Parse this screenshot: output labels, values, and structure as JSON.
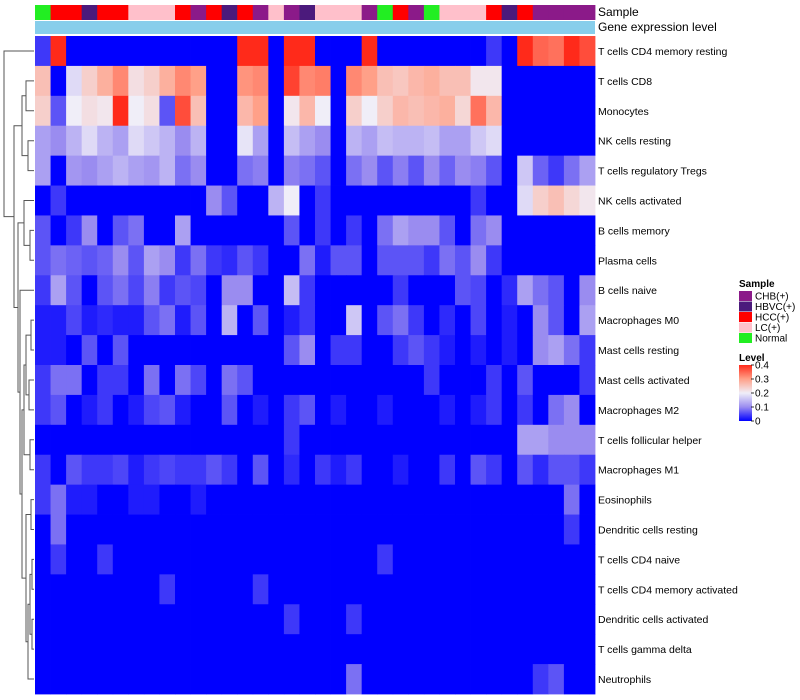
{
  "chart_data": {
    "type": "heatmap",
    "annotation_labels": {
      "sample": "Sample",
      "level": "Gene expression level"
    },
    "row_labels": [
      "T cells CD4 memory resting",
      "T cells CD8",
      "Monocytes",
      "NK cells resting",
      "T cells regulatory  Tregs",
      "NK cells activated",
      "B cells memory",
      "Plasma cells",
      "B cells naive",
      "Macrophages M0",
      "Mast cells resting",
      "Mast cells activated",
      "Macrophages M2",
      "T cells follicular helper",
      "Macrophages M1",
      "Eosinophils",
      "Dendritic cells resting",
      "T cells CD4 naive",
      "T cells CD4 memory activated",
      "Dendritic cells activated",
      "T cells gamma delta",
      "Neutrophils"
    ],
    "sample_groups": [
      "Normal",
      "HCC(+)",
      "HCC(+)",
      "HBVC(+)",
      "HCC(+)",
      "HCC(+)",
      "LC(+)",
      "LC(+)",
      "LC(+)",
      "HCC(+)",
      "CHB(+)",
      "HCC(+)",
      "HBVC(+)",
      "HCC(+)",
      "CHB(+)",
      "LC(+)",
      "CHB(+)",
      "HBVC(+)",
      "LC(+)",
      "LC(+)",
      "LC(+)",
      "CHB(+)",
      "Normal",
      "HCC(+)",
      "CHB(+)",
      "Normal",
      "LC(+)",
      "LC(+)",
      "LC(+)",
      "HCC(+)",
      "HBVC(+)",
      "HCC(+)",
      "CHB(+)",
      "CHB(+)",
      "CHB(+)",
      "CHB(+)"
    ],
    "legend": {
      "sample_title": "Sample",
      "sample_entries": [
        {
          "label": "CHB(+)",
          "color": "#8B1A89"
        },
        {
          "label": "HBVC(+)",
          "color": "#4B1A7C"
        },
        {
          "label": "HCC(+)",
          "color": "#FF0000"
        },
        {
          "label": "LC(+)",
          "color": "#FFC0CB"
        },
        {
          "label": "Normal",
          "color": "#22EE22"
        }
      ],
      "level_title": "Level",
      "level_ticks": [
        "0.4",
        "0.3",
        "0.2",
        "0.1",
        "0"
      ],
      "level_range": [
        0,
        0.4
      ]
    },
    "values": [
      [
        0.04,
        0.4,
        0.0,
        0.0,
        0.0,
        0.0,
        0.0,
        0.0,
        0.0,
        0.0,
        0.0,
        0.0,
        0.0,
        0.4,
        0.4,
        0.0,
        0.4,
        0.4,
        0.0,
        0.0,
        0.0,
        0.4,
        0.0,
        0.0,
        0.0,
        0.0,
        0.0,
        0.0,
        0.0,
        0.04,
        0.0,
        0.4,
        0.35,
        0.34,
        0.4,
        0.37
      ],
      [
        0.26,
        0.0,
        0.18,
        0.24,
        0.28,
        0.32,
        0.22,
        0.24,
        0.28,
        0.32,
        0.3,
        0.0,
        0.0,
        0.31,
        0.32,
        0.0,
        0.38,
        0.32,
        0.33,
        0.0,
        0.32,
        0.3,
        0.26,
        0.25,
        0.27,
        0.28,
        0.26,
        0.26,
        0.21,
        0.21,
        0.0,
        0.0,
        0.0,
        0.0,
        0.0,
        0.0
      ],
      [
        0.24,
        0.06,
        0.2,
        0.22,
        0.21,
        0.4,
        0.2,
        0.22,
        0.06,
        0.37,
        0.26,
        0.0,
        0.0,
        0.27,
        0.3,
        0.0,
        0.21,
        0.27,
        0.2,
        0.0,
        0.24,
        0.2,
        0.24,
        0.27,
        0.26,
        0.27,
        0.28,
        0.23,
        0.34,
        0.27,
        0.0,
        0.0,
        0.0,
        0.0,
        0.0,
        0.0
      ],
      [
        0.12,
        0.1,
        0.14,
        0.18,
        0.14,
        0.12,
        0.18,
        0.16,
        0.14,
        0.1,
        0.14,
        0.0,
        0.0,
        0.19,
        0.12,
        0.0,
        0.15,
        0.12,
        0.1,
        0.0,
        0.14,
        0.12,
        0.15,
        0.14,
        0.14,
        0.15,
        0.12,
        0.12,
        0.16,
        0.18,
        0.0,
        0.0,
        0.0,
        0.0,
        0.0,
        0.0
      ],
      [
        0.12,
        0.0,
        0.11,
        0.1,
        0.12,
        0.14,
        0.12,
        0.11,
        0.14,
        0.08,
        0.1,
        0.0,
        0.0,
        0.08,
        0.09,
        0.0,
        0.09,
        0.08,
        0.06,
        0.0,
        0.08,
        0.1,
        0.06,
        0.09,
        0.06,
        0.1,
        0.07,
        0.1,
        0.09,
        0.06,
        0.0,
        0.16,
        0.07,
        0.04,
        0.08,
        0.12
      ],
      [
        0.0,
        0.04,
        0.0,
        0.0,
        0.0,
        0.0,
        0.0,
        0.0,
        0.0,
        0.0,
        0.0,
        0.1,
        0.06,
        0.0,
        0.0,
        0.14,
        0.2,
        0.0,
        0.04,
        0.0,
        0.0,
        0.0,
        0.0,
        0.0,
        0.0,
        0.0,
        0.0,
        0.0,
        0.04,
        0.0,
        0.0,
        0.18,
        0.24,
        0.26,
        0.23,
        0.21
      ],
      [
        0.06,
        0.0,
        0.04,
        0.1,
        0.0,
        0.06,
        0.08,
        0.0,
        0.0,
        0.12,
        0.0,
        0.0,
        0.0,
        0.0,
        0.0,
        0.0,
        0.06,
        0.0,
        0.04,
        0.0,
        0.04,
        0.0,
        0.08,
        0.12,
        0.1,
        0.1,
        0.06,
        0.0,
        0.08,
        0.1,
        0.0,
        0.0,
        0.0,
        0.0,
        0.0,
        0.0
      ],
      [
        0.06,
        0.08,
        0.07,
        0.06,
        0.07,
        0.1,
        0.06,
        0.12,
        0.1,
        0.04,
        0.08,
        0.04,
        0.03,
        0.06,
        0.04,
        0.0,
        0.0,
        0.08,
        0.02,
        0.06,
        0.06,
        0.0,
        0.06,
        0.06,
        0.06,
        0.04,
        0.08,
        0.06,
        0.1,
        0.04,
        0.0,
        0.0,
        0.0,
        0.0,
        0.0,
        0.0
      ],
      [
        0.04,
        0.12,
        0.06,
        0.0,
        0.06,
        0.08,
        0.05,
        0.09,
        0.04,
        0.06,
        0.05,
        0.0,
        0.1,
        0.1,
        0.0,
        0.0,
        0.15,
        0.04,
        0.0,
        0.0,
        0.0,
        0.0,
        0.0,
        0.04,
        0.0,
        0.0,
        0.0,
        0.06,
        0.05,
        0.0,
        0.03,
        0.12,
        0.08,
        0.06,
        0.0,
        0.1
      ],
      [
        0.02,
        0.02,
        0.05,
        0.02,
        0.03,
        0.02,
        0.02,
        0.06,
        0.08,
        0.02,
        0.06,
        0.0,
        0.14,
        0.0,
        0.06,
        0.0,
        0.02,
        0.04,
        0.0,
        0.0,
        0.16,
        0.0,
        0.06,
        0.08,
        0.04,
        0.0,
        0.03,
        0.0,
        0.05,
        0.0,
        0.02,
        0.0,
        0.1,
        0.06,
        0.0,
        0.12
      ],
      [
        0.02,
        0.02,
        0.0,
        0.06,
        0.0,
        0.06,
        0.0,
        0.0,
        0.0,
        0.0,
        0.0,
        0.0,
        0.0,
        0.0,
        0.0,
        0.0,
        0.06,
        0.1,
        0.0,
        0.04,
        0.04,
        0.0,
        0.0,
        0.04,
        0.06,
        0.04,
        0.02,
        0.0,
        0.02,
        0.0,
        0.02,
        0.0,
        0.1,
        0.12,
        0.08,
        0.04
      ],
      [
        0.04,
        0.08,
        0.08,
        0.0,
        0.04,
        0.04,
        0.0,
        0.08,
        0.0,
        0.08,
        0.05,
        0.0,
        0.08,
        0.06,
        0.0,
        0.0,
        0.0,
        0.0,
        0.0,
        0.0,
        0.0,
        0.0,
        0.0,
        0.0,
        0.0,
        0.04,
        0.0,
        0.0,
        0.0,
        0.04,
        0.0,
        0.06,
        0.0,
        0.0,
        0.0,
        0.04
      ],
      [
        0.04,
        0.06,
        0.0,
        0.02,
        0.04,
        0.0,
        0.02,
        0.05,
        0.06,
        0.02,
        0.0,
        0.0,
        0.06,
        0.0,
        0.02,
        0.0,
        0.04,
        0.06,
        0.0,
        0.02,
        0.0,
        0.0,
        0.02,
        0.0,
        0.0,
        0.0,
        0.02,
        0.0,
        0.02,
        0.04,
        0.0,
        0.04,
        0.0,
        0.08,
        0.1,
        0.0
      ],
      [
        0.0,
        0.0,
        0.0,
        0.0,
        0.0,
        0.0,
        0.0,
        0.0,
        0.0,
        0.0,
        0.0,
        0.0,
        0.0,
        0.0,
        0.0,
        0.0,
        0.04,
        0.0,
        0.0,
        0.0,
        0.0,
        0.0,
        0.0,
        0.0,
        0.0,
        0.0,
        0.0,
        0.0,
        0.0,
        0.0,
        0.0,
        0.12,
        0.12,
        0.1,
        0.1,
        0.1
      ],
      [
        0.04,
        0.0,
        0.06,
        0.04,
        0.04,
        0.05,
        0.02,
        0.04,
        0.05,
        0.04,
        0.04,
        0.06,
        0.04,
        0.0,
        0.06,
        0.0,
        0.03,
        0.0,
        0.04,
        0.02,
        0.04,
        0.0,
        0.0,
        0.02,
        0.0,
        0.0,
        0.04,
        0.0,
        0.06,
        0.04,
        0.0,
        0.06,
        0.03,
        0.06,
        0.06,
        0.04
      ],
      [
        0.04,
        0.08,
        0.02,
        0.02,
        0.0,
        0.0,
        0.02,
        0.02,
        0.0,
        0.0,
        0.02,
        0.0,
        0.0,
        0.0,
        0.0,
        0.0,
        0.0,
        0.0,
        0.0,
        0.0,
        0.0,
        0.0,
        0.0,
        0.0,
        0.0,
        0.0,
        0.0,
        0.0,
        0.0,
        0.0,
        0.0,
        0.0,
        0.0,
        0.0,
        0.08,
        0.0
      ],
      [
        0.0,
        0.08,
        0.0,
        0.0,
        0.0,
        0.0,
        0.0,
        0.0,
        0.0,
        0.0,
        0.0,
        0.0,
        0.0,
        0.0,
        0.0,
        0.0,
        0.0,
        0.0,
        0.0,
        0.0,
        0.0,
        0.0,
        0.0,
        0.0,
        0.0,
        0.0,
        0.0,
        0.0,
        0.0,
        0.0,
        0.0,
        0.0,
        0.0,
        0.0,
        0.04,
        0.0
      ],
      [
        0.0,
        0.04,
        0.0,
        0.0,
        0.04,
        0.0,
        0.0,
        0.0,
        0.0,
        0.0,
        0.0,
        0.0,
        0.0,
        0.0,
        0.0,
        0.0,
        0.0,
        0.0,
        0.0,
        0.0,
        0.0,
        0.0,
        0.04,
        0.0,
        0.0,
        0.0,
        0.0,
        0.0,
        0.0,
        0.0,
        0.0,
        0.0,
        0.0,
        0.0,
        0.0,
        0.0
      ],
      [
        0.0,
        0.0,
        0.0,
        0.0,
        0.0,
        0.0,
        0.0,
        0.0,
        0.04,
        0.0,
        0.0,
        0.0,
        0.0,
        0.0,
        0.04,
        0.0,
        0.0,
        0.0,
        0.0,
        0.0,
        0.0,
        0.0,
        0.0,
        0.0,
        0.0,
        0.0,
        0.0,
        0.0,
        0.0,
        0.0,
        0.0,
        0.0,
        0.0,
        0.0,
        0.0,
        0.0
      ],
      [
        0.0,
        0.0,
        0.0,
        0.0,
        0.0,
        0.0,
        0.0,
        0.0,
        0.0,
        0.0,
        0.0,
        0.0,
        0.0,
        0.0,
        0.0,
        0.0,
        0.04,
        0.0,
        0.0,
        0.0,
        0.04,
        0.0,
        0.0,
        0.0,
        0.0,
        0.0,
        0.0,
        0.0,
        0.0,
        0.0,
        0.0,
        0.0,
        0.0,
        0.0,
        0.0,
        0.0
      ],
      [
        0.0,
        0.0,
        0.0,
        0.0,
        0.0,
        0.0,
        0.0,
        0.0,
        0.0,
        0.0,
        0.0,
        0.0,
        0.0,
        0.0,
        0.0,
        0.0,
        0.0,
        0.0,
        0.0,
        0.0,
        0.0,
        0.0,
        0.0,
        0.0,
        0.0,
        0.0,
        0.0,
        0.0,
        0.0,
        0.0,
        0.0,
        0.0,
        0.0,
        0.0,
        0.0,
        0.0
      ],
      [
        0.0,
        0.0,
        0.0,
        0.0,
        0.0,
        0.0,
        0.0,
        0.0,
        0.0,
        0.0,
        0.0,
        0.0,
        0.0,
        0.0,
        0.0,
        0.0,
        0.0,
        0.0,
        0.0,
        0.0,
        0.08,
        0.0,
        0.0,
        0.0,
        0.0,
        0.0,
        0.0,
        0.0,
        0.0,
        0.0,
        0.0,
        0.0,
        0.04,
        0.06,
        0.0,
        0.0
      ]
    ]
  }
}
